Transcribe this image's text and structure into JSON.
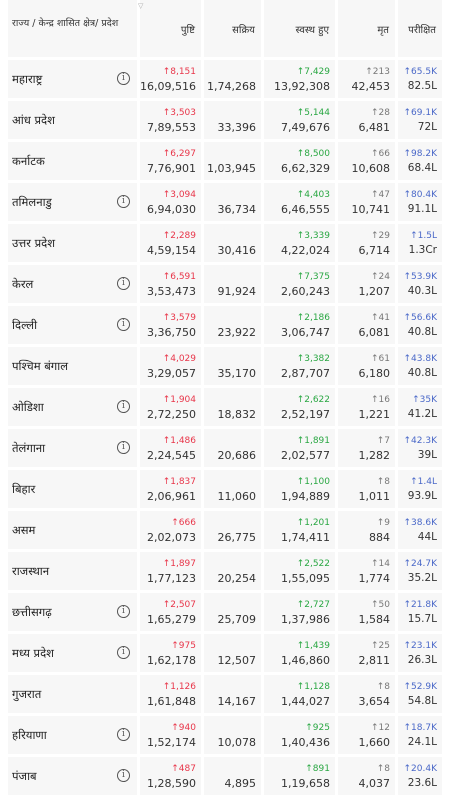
{
  "header": {
    "state": "राज्य / केन्द्र शासित क्षेत्र/ प्रदेश",
    "confirmed": "पुष्टि",
    "active": "सक्रिय",
    "recovered": "स्वस्थ हुए",
    "deceased": "मृत",
    "tested": "परीक्षित"
  },
  "colors": {
    "confirmed": "#e8364a",
    "recovered": "#2aa743",
    "deceased": "#777777",
    "tested": "#4a68c8"
  },
  "rows": [
    {
      "state": "महाराष्ट्र",
      "info": true,
      "conf_delta": "↑8,151",
      "confirmed": "16,09,516",
      "active": "1,74,268",
      "rec_delta": "↑7,429",
      "recovered": "13,92,308",
      "dec_delta": "↑213",
      "deceased": "42,453",
      "test_delta": "↑65.5K",
      "tested": "82.5L"
    },
    {
      "state": "आंध प्रदेश",
      "info": false,
      "conf_delta": "↑3,503",
      "confirmed": "7,89,553",
      "active": "33,396",
      "rec_delta": "↑5,144",
      "recovered": "7,49,676",
      "dec_delta": "↑28",
      "deceased": "6,481",
      "test_delta": "↑69.1K",
      "tested": "72L"
    },
    {
      "state": "कर्नाटक",
      "info": false,
      "conf_delta": "↑6,297",
      "confirmed": "7,76,901",
      "active": "1,03,945",
      "rec_delta": "↑8,500",
      "recovered": "6,62,329",
      "dec_delta": "↑66",
      "deceased": "10,608",
      "test_delta": "↑98.2K",
      "tested": "68.4L"
    },
    {
      "state": "तमिलनाडु",
      "info": true,
      "conf_delta": "↑3,094",
      "confirmed": "6,94,030",
      "active": "36,734",
      "rec_delta": "↑4,403",
      "recovered": "6,46,555",
      "dec_delta": "↑47",
      "deceased": "10,741",
      "test_delta": "↑80.4K",
      "tested": "91.1L"
    },
    {
      "state": "उत्तर प्रदेश",
      "info": false,
      "conf_delta": "↑2,289",
      "confirmed": "4,59,154",
      "active": "30,416",
      "rec_delta": "↑3,339",
      "recovered": "4,22,024",
      "dec_delta": "↑29",
      "deceased": "6,714",
      "test_delta": "↑1.5L",
      "tested": "1.3Cr"
    },
    {
      "state": "केरल",
      "info": true,
      "conf_delta": "↑6,591",
      "confirmed": "3,53,473",
      "active": "91,924",
      "rec_delta": "↑7,375",
      "recovered": "2,60,243",
      "dec_delta": "↑24",
      "deceased": "1,207",
      "test_delta": "↑53.9K",
      "tested": "40.3L"
    },
    {
      "state": "दिल्ली",
      "info": true,
      "conf_delta": "↑3,579",
      "confirmed": "3,36,750",
      "active": "23,922",
      "rec_delta": "↑2,186",
      "recovered": "3,06,747",
      "dec_delta": "↑41",
      "deceased": "6,081",
      "test_delta": "↑56.6K",
      "tested": "40.8L"
    },
    {
      "state": "पश्चिम बंगाल",
      "info": false,
      "conf_delta": "↑4,029",
      "confirmed": "3,29,057",
      "active": "35,170",
      "rec_delta": "↑3,382",
      "recovered": "2,87,707",
      "dec_delta": "↑61",
      "deceased": "6,180",
      "test_delta": "↑43.8K",
      "tested": "40.8L"
    },
    {
      "state": "ओडिशा",
      "info": true,
      "conf_delta": "↑1,904",
      "confirmed": "2,72,250",
      "active": "18,832",
      "rec_delta": "↑2,622",
      "recovered": "2,52,197",
      "dec_delta": "↑16",
      "deceased": "1,221",
      "test_delta": "↑35K",
      "tested": "41.2L"
    },
    {
      "state": "तेलंगाना",
      "info": true,
      "conf_delta": "↑1,486",
      "confirmed": "2,24,545",
      "active": "20,686",
      "rec_delta": "↑1,891",
      "recovered": "2,02,577",
      "dec_delta": "↑7",
      "deceased": "1,282",
      "test_delta": "↑42.3K",
      "tested": "39L"
    },
    {
      "state": "बिहार",
      "info": false,
      "conf_delta": "↑1,837",
      "confirmed": "2,06,961",
      "active": "11,060",
      "rec_delta": "↑1,100",
      "recovered": "1,94,889",
      "dec_delta": "↑8",
      "deceased": "1,011",
      "test_delta": "↑1.4L",
      "tested": "93.9L"
    },
    {
      "state": "असम",
      "info": false,
      "conf_delta": "↑666",
      "confirmed": "2,02,073",
      "active": "26,775",
      "rec_delta": "↑1,201",
      "recovered": "1,74,411",
      "dec_delta": "↑9",
      "deceased": "884",
      "test_delta": "↑38.6K",
      "tested": "44L"
    },
    {
      "state": "राजस्थान",
      "info": false,
      "conf_delta": "↑1,897",
      "confirmed": "1,77,123",
      "active": "20,254",
      "rec_delta": "↑2,522",
      "recovered": "1,55,095",
      "dec_delta": "↑14",
      "deceased": "1,774",
      "test_delta": "↑24.7K",
      "tested": "35.2L"
    },
    {
      "state": "छत्तीसगढ़",
      "info": true,
      "conf_delta": "↑2,507",
      "confirmed": "1,65,279",
      "active": "25,709",
      "rec_delta": "↑2,727",
      "recovered": "1,37,986",
      "dec_delta": "↑50",
      "deceased": "1,584",
      "test_delta": "↑21.8K",
      "tested": "15.7L"
    },
    {
      "state": "मध्य प्रदेश",
      "info": true,
      "conf_delta": "↑975",
      "confirmed": "1,62,178",
      "active": "12,507",
      "rec_delta": "↑1,439",
      "recovered": "1,46,860",
      "dec_delta": "↑25",
      "deceased": "2,811",
      "test_delta": "↑23.1K",
      "tested": "26.3L"
    },
    {
      "state": "गुजरात",
      "info": false,
      "conf_delta": "↑1,126",
      "confirmed": "1,61,848",
      "active": "14,167",
      "rec_delta": "↑1,128",
      "recovered": "1,44,027",
      "dec_delta": "↑8",
      "deceased": "3,654",
      "test_delta": "↑52.9K",
      "tested": "54.8L"
    },
    {
      "state": "हरियाणा",
      "info": true,
      "conf_delta": "↑940",
      "confirmed": "1,52,174",
      "active": "10,078",
      "rec_delta": "↑925",
      "recovered": "1,40,436",
      "dec_delta": "↑12",
      "deceased": "1,660",
      "test_delta": "↑18.7K",
      "tested": "24.1L"
    },
    {
      "state": "पंजाब",
      "info": true,
      "conf_delta": "↑487",
      "confirmed": "1,28,590",
      "active": "4,895",
      "rec_delta": "↑891",
      "recovered": "1,19,658",
      "dec_delta": "↑8",
      "deceased": "4,037",
      "test_delta": "↑20.4K",
      "tested": "23.6L"
    }
  ]
}
